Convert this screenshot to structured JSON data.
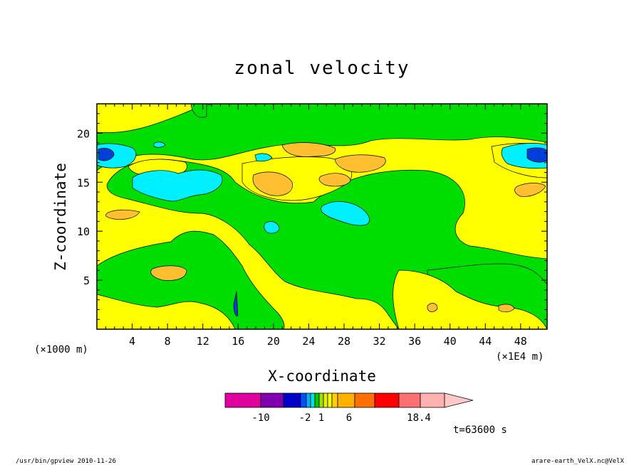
{
  "chart_data": {
    "type": "heatmap",
    "title": "zonal velocity",
    "xlabel": "X-coordinate",
    "ylabel": "Z-coordinate",
    "x_unit": "(×1000 m)",
    "x_unit_right": "(×1E4 m)",
    "x_ticks": [
      "4",
      "8",
      "12",
      "16",
      "20",
      "24",
      "28",
      "32",
      "36",
      "40",
      "44",
      "48"
    ],
    "x_tick_values": [
      4,
      8,
      12,
      16,
      20,
      24,
      28,
      32,
      36,
      40,
      44,
      48
    ],
    "y_ticks": [
      "5",
      "10",
      "15",
      "20"
    ],
    "y_tick_values": [
      5,
      10,
      15,
      20
    ],
    "xlim": [
      0,
      51
    ],
    "ylim": [
      0,
      23
    ],
    "grid": false,
    "colorbar": {
      "labels": [
        "-10",
        "-2",
        "1",
        "6",
        "18.4"
      ],
      "colors": [
        "#e000a0",
        "#8000b0",
        "#0000c8",
        "#0050ff",
        "#00b0ff",
        "#00e0e0",
        "#00c800",
        "#a0e000",
        "#e0f000",
        "#ffff00",
        "#ffd000",
        "#ffb000",
        "#ff7000",
        "#ff0000",
        "#ff7070",
        "#ffb0b0"
      ]
    },
    "field_colors": {
      "green": "#00dd00",
      "yellow": "#ffff00",
      "orange": "#ffbf30",
      "cyan": "#00f0ff",
      "blue": "#0040d8"
    },
    "annotation": "t=63600 s"
  },
  "footer": {
    "left": "/usr/bin/gpview   2010-11-26",
    "right": "arare-earth_VelX.nc@VelX"
  }
}
